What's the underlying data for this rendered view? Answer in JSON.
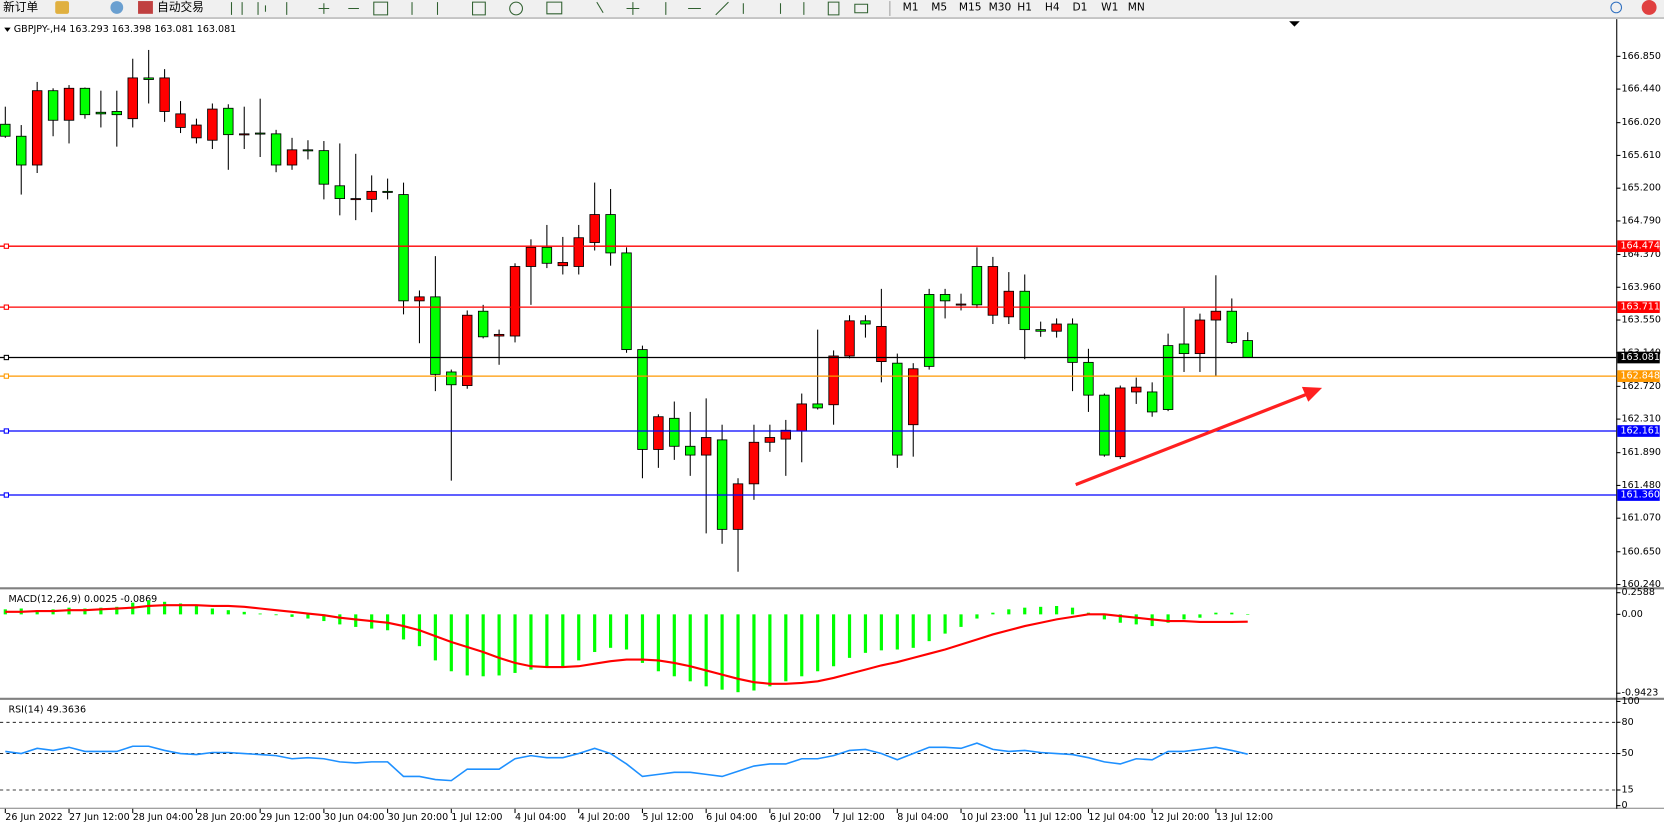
{
  "toolbar": {
    "left": [
      "新订单",
      "自动交易"
    ],
    "timeframes": [
      "M1",
      "M5",
      "M15",
      "M30",
      "H1",
      "H4",
      "D1",
      "W1",
      "MN"
    ]
  },
  "chart_data": [
    {
      "type": "candlestick",
      "title": "GBPJPY-,H4 163.293 163.398 163.081 163.081",
      "categories": [
        "26 Jun 2022",
        null,
        null,
        null,
        "27 Jun 12:00",
        null,
        null,
        null,
        "28 Jun 04:00",
        null,
        null,
        null,
        "28 Jun 20:00",
        null,
        null,
        null,
        "29 Jun 12:00",
        null,
        null,
        null,
        "30 Jun 04:00",
        null,
        null,
        null,
        "30 Jun 20:00",
        null,
        null,
        null,
        "1 Jul 12:00",
        null,
        null,
        null,
        "4 Jul 04:00",
        null,
        null,
        null,
        "4 Jul 20:00",
        null,
        null,
        null,
        "5 Jul 12:00",
        null,
        null,
        null,
        "6 Jul 04:00",
        null,
        null,
        null,
        "6 Jul 20:00",
        null,
        null,
        null,
        "7 Jul 12:00",
        null,
        null,
        null,
        "8 Jul 04:00",
        null,
        null,
        null,
        "10 Jul 23:00",
        null,
        null,
        null,
        "11 Jul 12:00",
        null,
        null,
        null,
        "12 Jul 04:00",
        null,
        null,
        null,
        "12 Jul 20:00",
        null,
        null,
        null,
        "13 Jul 12:00",
        null,
        null
      ],
      "open": [
        166.0,
        165.85,
        165.49,
        166.42,
        166.05,
        166.45,
        166.15,
        166.16,
        166.07,
        166.58,
        166.16,
        165.96,
        165.83,
        165.8,
        166.2,
        165.87,
        165.89,
        165.88,
        165.49,
        165.68,
        165.67,
        165.23,
        165.06,
        165.06,
        165.16,
        165.12,
        163.79,
        163.84,
        162.9,
        162.73,
        163.66,
        163.35,
        163.35,
        164.22,
        164.46,
        164.23,
        164.22,
        164.52,
        164.87,
        164.39,
        163.18,
        161.93,
        162.32,
        161.97,
        161.86,
        162.05,
        160.93,
        161.5,
        162.02,
        162.06,
        162.16,
        162.5,
        162.49,
        163.1,
        163.54,
        163.03,
        163.01,
        162.24,
        163.87,
        163.87,
        163.74,
        164.22,
        163.61,
        163.59,
        163.91,
        163.43,
        163.41,
        163.5,
        163.02,
        162.61,
        161.84,
        162.65,
        162.65,
        163.23,
        163.25,
        163.13,
        163.55,
        163.66,
        163.293
      ],
      "high": [
        166.22,
        165.99,
        166.53,
        166.45,
        166.49,
        166.46,
        166.42,
        166.42,
        166.82,
        166.93,
        166.69,
        166.29,
        166.07,
        166.26,
        166.25,
        166.22,
        166.32,
        165.93,
        165.83,
        165.8,
        165.79,
        165.76,
        165.63,
        165.36,
        165.32,
        165.27,
        163.92,
        164.35,
        162.93,
        163.67,
        163.74,
        163.43,
        164.26,
        164.56,
        164.74,
        164.59,
        164.74,
        165.27,
        165.19,
        164.46,
        163.23,
        162.37,
        162.53,
        162.4,
        162.57,
        162.24,
        161.57,
        162.24,
        162.24,
        162.3,
        162.63,
        163.43,
        163.17,
        163.61,
        163.61,
        163.94,
        163.13,
        163.01,
        163.94,
        163.94,
        163.88,
        164.46,
        164.34,
        164.15,
        164.12,
        163.53,
        163.57,
        163.57,
        163.19,
        162.63,
        162.73,
        162.83,
        162.77,
        163.38,
        163.7,
        163.63,
        164.11,
        163.82,
        163.398
      ],
      "low": [
        165.83,
        165.12,
        165.39,
        165.85,
        165.76,
        166.07,
        165.96,
        165.72,
        165.96,
        166.26,
        166.03,
        165.89,
        165.76,
        165.69,
        165.43,
        165.69,
        165.59,
        165.4,
        165.43,
        165.56,
        165.06,
        164.86,
        164.8,
        164.9,
        165.06,
        163.62,
        163.26,
        162.66,
        161.54,
        162.69,
        163.32,
        162.99,
        163.27,
        163.74,
        164.2,
        164.12,
        164.12,
        164.42,
        164.23,
        163.14,
        161.57,
        161.7,
        161.8,
        161.6,
        160.88,
        160.75,
        160.4,
        161.3,
        161.9,
        161.6,
        161.77,
        162.43,
        162.24,
        163.07,
        163.33,
        162.77,
        161.7,
        161.84,
        162.93,
        163.57,
        163.67,
        163.7,
        163.5,
        163.5,
        163.06,
        163.34,
        163.33,
        162.66,
        162.4,
        161.84,
        161.81,
        162.5,
        162.34,
        162.41,
        162.9,
        162.9,
        162.85,
        163.25,
        163.081
      ],
      "close": [
        165.85,
        165.49,
        166.42,
        166.05,
        166.45,
        166.12,
        166.13,
        166.12,
        166.58,
        166.56,
        166.58,
        166.13,
        165.99,
        166.19,
        165.87,
        165.88,
        165.88,
        165.49,
        165.68,
        165.67,
        165.25,
        165.07,
        165.07,
        165.16,
        165.15,
        163.79,
        163.84,
        162.87,
        162.74,
        163.61,
        163.34,
        163.37,
        164.22,
        164.46,
        164.26,
        164.27,
        164.58,
        164.87,
        164.39,
        163.18,
        161.93,
        162.34,
        161.97,
        161.86,
        162.08,
        160.93,
        161.5,
        162.02,
        162.08,
        162.17,
        162.5,
        162.45,
        163.1,
        163.54,
        163.5,
        163.47,
        161.86,
        162.94,
        162.97,
        163.79,
        163.75,
        163.74,
        164.22,
        163.91,
        163.43,
        163.41,
        163.5,
        163.02,
        162.61,
        161.86,
        162.7,
        162.71,
        162.4,
        162.43,
        163.13,
        163.55,
        163.66,
        163.27,
        163.081
      ],
      "up_color": "#ff0000",
      "down_color": "#00ff00",
      "wick_color": "#000000",
      "ylim": [
        160.213,
        167.289
      ],
      "yticks": [
        {
          "value": 166.85,
          "label": "166.850"
        },
        {
          "value": 166.44,
          "label": "166.440"
        },
        {
          "value": 166.02,
          "label": "166.020"
        },
        {
          "value": 165.61,
          "label": "165.610"
        },
        {
          "value": 165.2,
          "label": "165.200"
        },
        {
          "value": 164.79,
          "label": "164.790"
        },
        {
          "value": 164.37,
          "label": "164.370"
        },
        {
          "value": 163.96,
          "label": "163.960"
        },
        {
          "value": 163.55,
          "label": "163.550"
        },
        {
          "value": 163.14,
          "label": "163.140"
        },
        {
          "value": 162.72,
          "label": "162.720"
        },
        {
          "value": 162.31,
          "label": "162.310"
        },
        {
          "value": 161.89,
          "label": "161.890"
        },
        {
          "value": 161.48,
          "label": "161.480"
        },
        {
          "value": 161.07,
          "label": "161.070"
        },
        {
          "value": 160.65,
          "label": "160.650"
        },
        {
          "value": 160.24,
          "label": "160.240"
        }
      ],
      "grid": false,
      "levels": [
        {
          "value": 164.474,
          "label": "164.474",
          "color": "#ff0000"
        },
        {
          "value": 163.711,
          "label": "163.711",
          "color": "#ff0000"
        },
        {
          "value": 163.081,
          "label": "163.081",
          "color": "#000000"
        },
        {
          "value": 162.848,
          "label": "162.848",
          "color": "#ff9900"
        },
        {
          "value": 162.161,
          "label": "162.161",
          "color": "#0000ff"
        },
        {
          "value": 161.36,
          "label": "161.360",
          "color": "#0000ff"
        }
      ]
    },
    {
      "type": "macd",
      "title": "MACD(12,26,9) 0.0025 -0.0869",
      "color": "#00ff00",
      "values": [
        0.06,
        0.07,
        0.05,
        0.06,
        0.08,
        0.07,
        0.08,
        0.09,
        0.14,
        0.17,
        0.15,
        0.13,
        0.1,
        0.07,
        0.05,
        0.03,
        0.01,
        -0.01,
        -0.03,
        -0.05,
        -0.08,
        -0.12,
        -0.15,
        -0.17,
        -0.19,
        -0.3,
        -0.38,
        -0.55,
        -0.68,
        -0.73,
        -0.74,
        -0.73,
        -0.7,
        -0.66,
        -0.63,
        -0.62,
        -0.55,
        -0.45,
        -0.4,
        -0.42,
        -0.58,
        -0.68,
        -0.74,
        -0.8,
        -0.86,
        -0.9,
        -0.93,
        -0.91,
        -0.86,
        -0.8,
        -0.74,
        -0.68,
        -0.62,
        -0.52,
        -0.46,
        -0.43,
        -0.42,
        -0.4,
        -0.32,
        -0.23,
        -0.15,
        -0.05,
        0.02,
        0.06,
        0.08,
        0.09,
        0.1,
        0.08,
        0.02,
        -0.06,
        -0.1,
        -0.12,
        -0.14,
        -0.1,
        -0.06,
        -0.04,
        0.02,
        0.02,
        0.0025
      ],
      "signal": {
        "color": "#ff0000",
        "values": [
          0.03,
          0.03,
          0.04,
          0.04,
          0.05,
          0.05,
          0.06,
          0.07,
          0.08,
          0.1,
          0.11,
          0.11,
          0.11,
          0.1,
          0.1,
          0.09,
          0.07,
          0.05,
          0.03,
          0.01,
          -0.01,
          -0.04,
          -0.06,
          -0.08,
          -0.1,
          -0.14,
          -0.19,
          -0.26,
          -0.33,
          -0.39,
          -0.45,
          -0.52,
          -0.58,
          -0.62,
          -0.63,
          -0.63,
          -0.62,
          -0.59,
          -0.56,
          -0.54,
          -0.54,
          -0.55,
          -0.58,
          -0.62,
          -0.67,
          -0.72,
          -0.77,
          -0.81,
          -0.83,
          -0.83,
          -0.82,
          -0.8,
          -0.76,
          -0.71,
          -0.66,
          -0.61,
          -0.57,
          -0.52,
          -0.47,
          -0.42,
          -0.36,
          -0.3,
          -0.24,
          -0.19,
          -0.14,
          -0.1,
          -0.06,
          -0.03,
          0.0,
          0.0,
          -0.02,
          -0.04,
          -0.06,
          -0.08,
          -0.08,
          -0.09,
          -0.09,
          -0.09,
          -0.0869
        ]
      },
      "ylim": [
        -0.99,
        0.28
      ],
      "yticks": [
        0.2588,
        {
          "value": 0,
          "label": "0.00"
        },
        -0.9423
      ]
    },
    {
      "type": "line",
      "title": "RSI(14) 49.3636",
      "color": "#1e90ff",
      "values": [
        52,
        50,
        55,
        53,
        56,
        52,
        52,
        52,
        57,
        57,
        53,
        50,
        49,
        51,
        51,
        50,
        49,
        48,
        45,
        46,
        45,
        42,
        41,
        42,
        42,
        28,
        28,
        25,
        24,
        35,
        35,
        35,
        45,
        48,
        46,
        46,
        50,
        55,
        50,
        40,
        28,
        30,
        32,
        32,
        30,
        28,
        33,
        38,
        40,
        40,
        45,
        45,
        48,
        53,
        54,
        50,
        44,
        50,
        56,
        56,
        55,
        60,
        54,
        52,
        53,
        51,
        50,
        49,
        46,
        42,
        40,
        45,
        44,
        52,
        52,
        54,
        56,
        53,
        49.3636
      ],
      "ylim": [
        0,
        100
      ],
      "yticks": [
        100,
        80,
        50,
        15,
        0
      ],
      "levels": [
        80,
        50,
        15
      ]
    }
  ]
}
